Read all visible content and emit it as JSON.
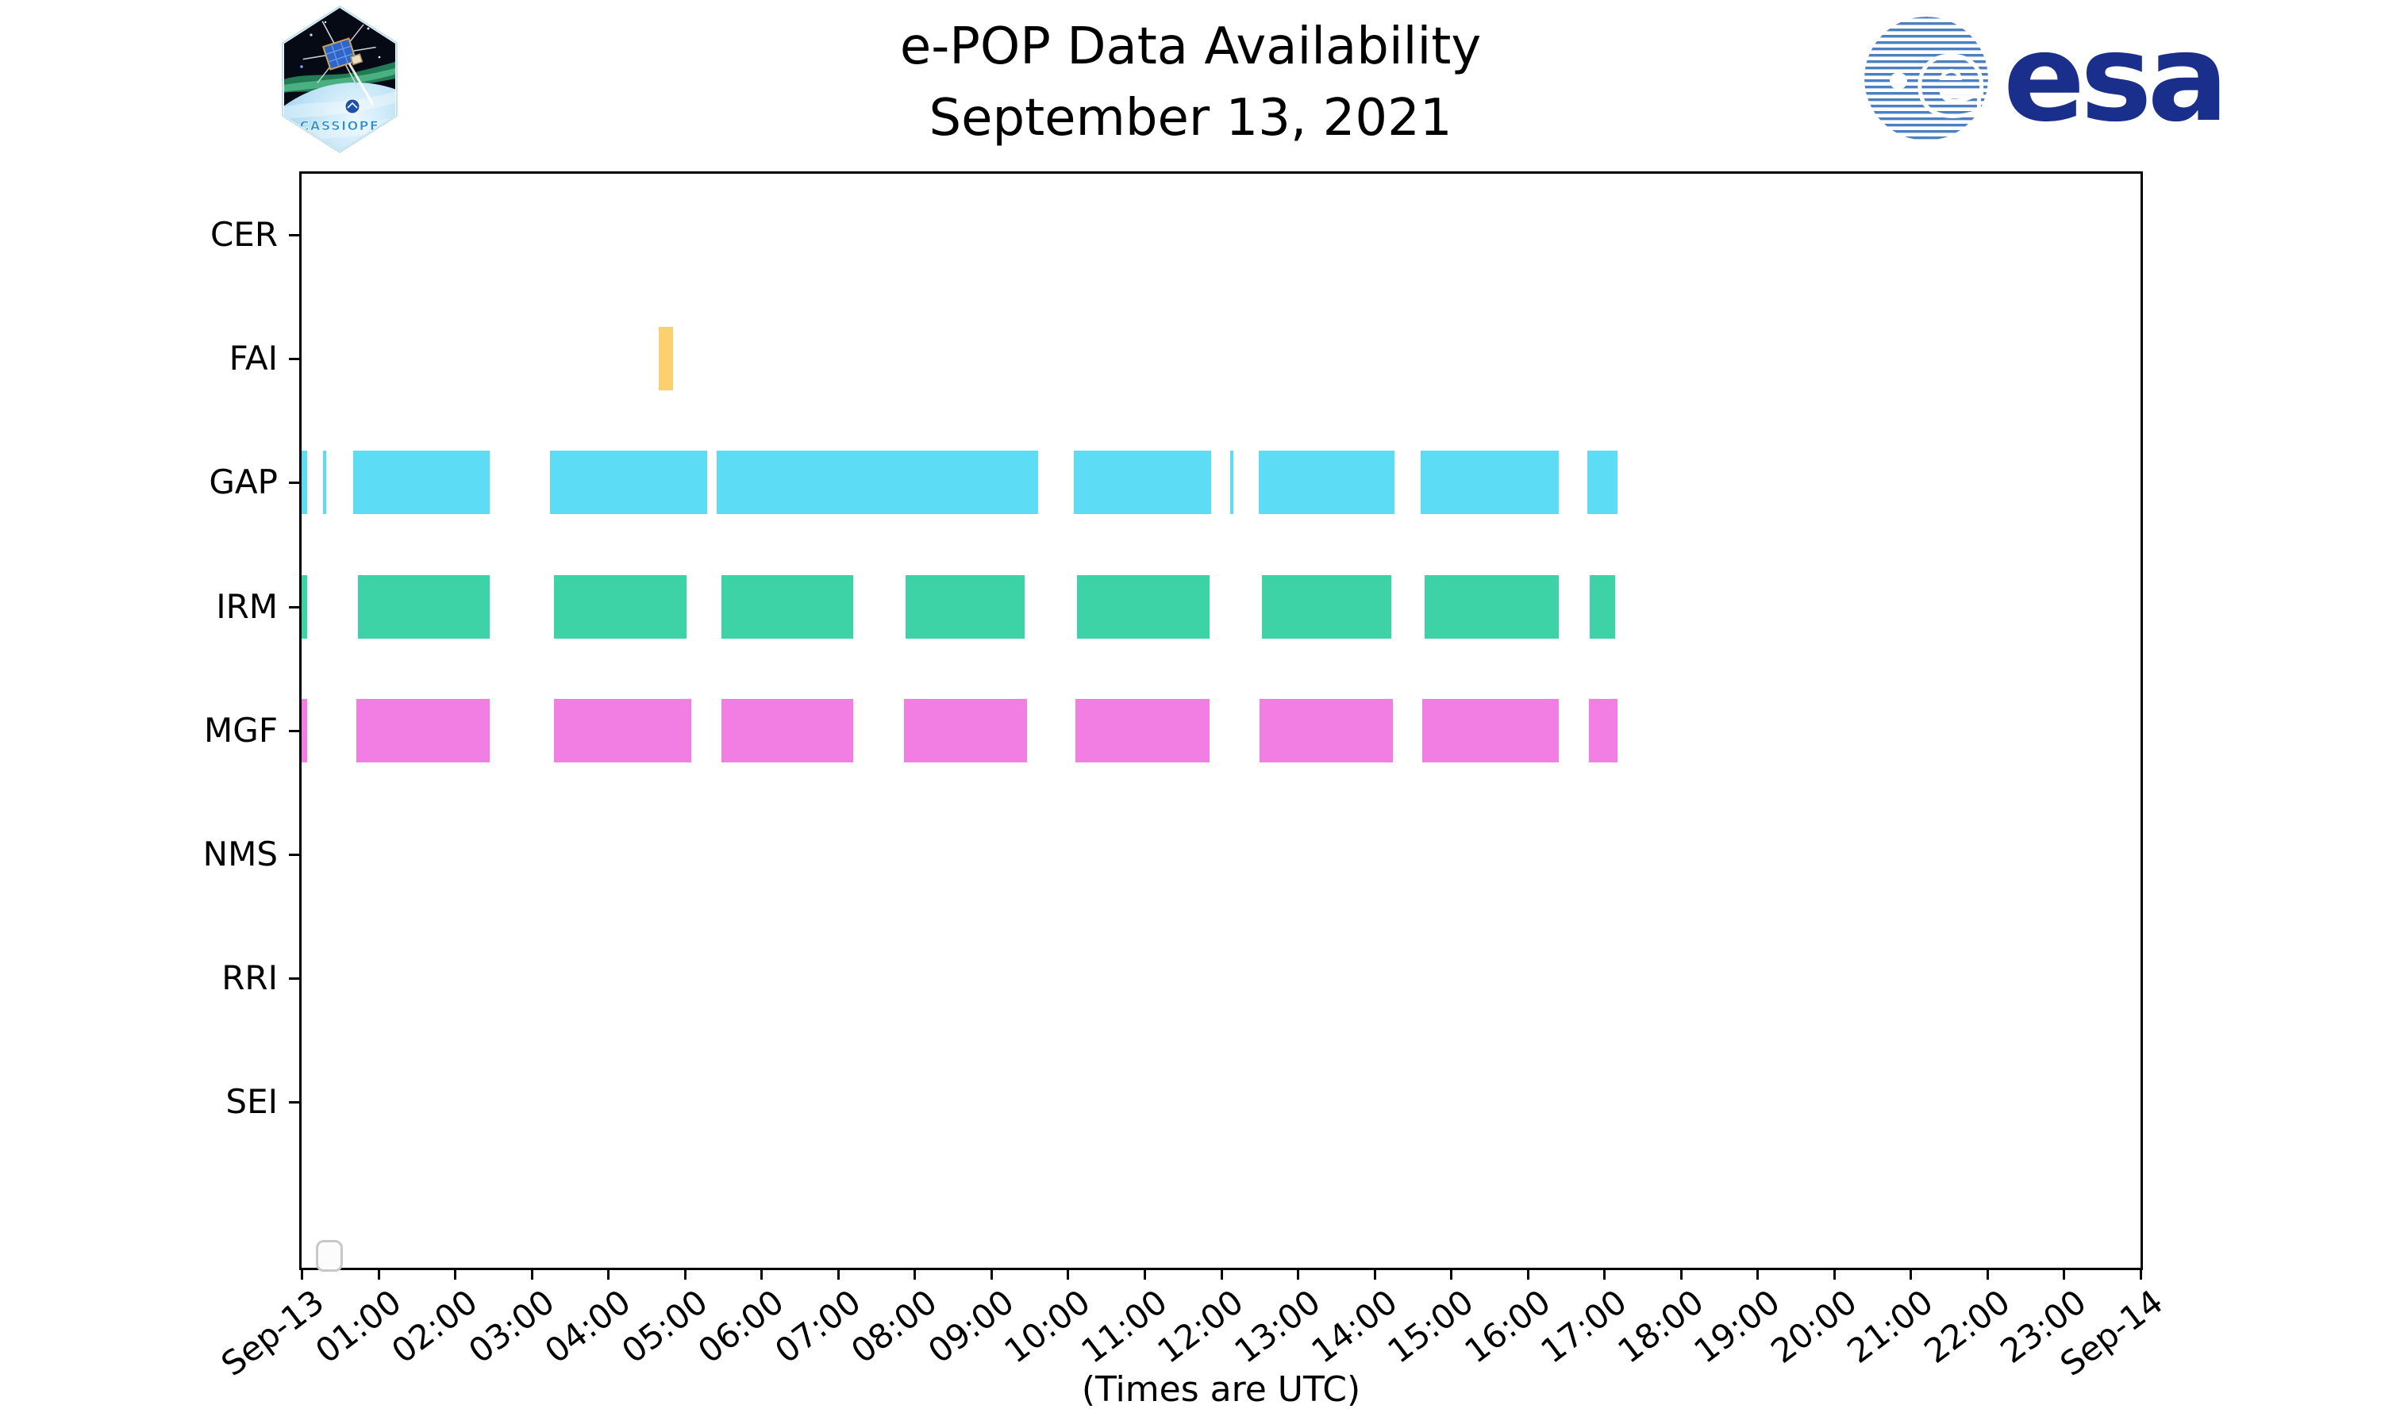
{
  "header": {
    "title_line1": "e-POP Data Availability",
    "title_line2": "September 13, 2021"
  },
  "branding": {
    "patch_text": "CASSIOPE",
    "esa_text": "esa",
    "esa_blue": "#1A2F8C",
    "esa_stripe_blue": "#4d7fc3"
  },
  "chart_data": {
    "type": "bar",
    "subtype": "timeline-availability (broken horizontal bars)",
    "title": "e-POP Data Availability",
    "subtitle": "September 13, 2021",
    "xlabel": "(Times are UTC)",
    "x_axis": {
      "units": "hours UTC",
      "range_hours": [
        0,
        24
      ],
      "tick_labels": [
        "Sep-13",
        "01:00",
        "02:00",
        "03:00",
        "04:00",
        "05:00",
        "06:00",
        "07:00",
        "08:00",
        "09:00",
        "10:00",
        "11:00",
        "12:00",
        "13:00",
        "14:00",
        "15:00",
        "16:00",
        "17:00",
        "18:00",
        "19:00",
        "20:00",
        "21:00",
        "22:00",
        "23:00",
        "Sep-14"
      ]
    },
    "categories": [
      "CER",
      "FAI",
      "GAP",
      "IRM",
      "MGF",
      "NMS",
      "RRI",
      "SEI"
    ],
    "grid": false,
    "legend_position": "lower-left (empty box)",
    "series": [
      {
        "name": "CER",
        "color": "#cccccc",
        "segments_hours": []
      },
      {
        "name": "FAI",
        "color": "#FCCF6F",
        "segments_hours": [
          [
            4.66,
            4.85
          ]
        ]
      },
      {
        "name": "GAP",
        "color": "#5DDCF5",
        "segments_hours": [
          [
            0.0,
            0.07
          ],
          [
            0.28,
            0.32
          ],
          [
            0.67,
            2.46
          ],
          [
            3.24,
            5.29
          ],
          [
            5.42,
            9.61
          ],
          [
            10.08,
            11.87
          ],
          [
            12.12,
            12.16
          ],
          [
            12.49,
            14.26
          ],
          [
            14.61,
            16.41
          ],
          [
            16.78,
            17.17
          ]
        ]
      },
      {
        "name": "IRM",
        "color": "#3ED3A6",
        "segments_hours": [
          [
            0.0,
            0.07
          ],
          [
            0.74,
            2.46
          ],
          [
            3.29,
            5.02
          ],
          [
            5.48,
            7.2
          ],
          [
            7.88,
            9.44
          ],
          [
            10.12,
            11.85
          ],
          [
            12.53,
            14.22
          ],
          [
            14.66,
            16.41
          ],
          [
            16.81,
            17.14
          ]
        ]
      },
      {
        "name": "MGF",
        "color": "#F27EE3",
        "segments_hours": [
          [
            0.0,
            0.07
          ],
          [
            0.71,
            2.46
          ],
          [
            3.29,
            5.09
          ],
          [
            5.48,
            7.2
          ],
          [
            7.86,
            9.47
          ],
          [
            10.1,
            11.85
          ],
          [
            12.5,
            14.24
          ],
          [
            14.63,
            16.41
          ],
          [
            16.8,
            17.17
          ]
        ]
      },
      {
        "name": "NMS",
        "color": "#cccccc",
        "segments_hours": []
      },
      {
        "name": "RRI",
        "color": "#cccccc",
        "segments_hours": []
      },
      {
        "name": "SEI",
        "color": "#cccccc",
        "segments_hours": []
      }
    ]
  }
}
